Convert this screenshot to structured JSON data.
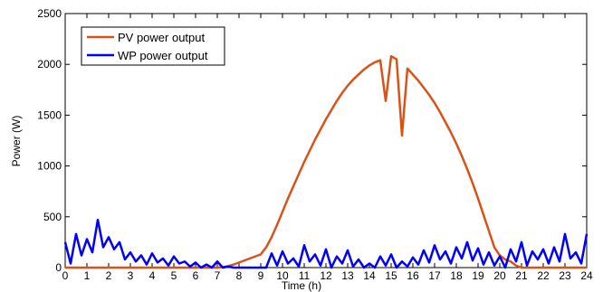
{
  "chart_data": {
    "type": "line",
    "xlabel": "Time (h)",
    "ylabel": "Power (W)",
    "x": [
      0,
      0.25,
      0.5,
      0.75,
      1,
      1.25,
      1.5,
      1.75,
      2,
      2.25,
      2.5,
      2.75,
      3,
      3.25,
      3.5,
      3.75,
      4,
      4.25,
      4.5,
      4.75,
      5,
      5.25,
      5.5,
      5.75,
      6,
      6.25,
      6.5,
      6.75,
      7,
      7.25,
      7.5,
      7.75,
      8,
      8.25,
      8.5,
      8.75,
      9,
      9.25,
      9.5,
      9.75,
      10,
      10.25,
      10.5,
      10.75,
      11,
      11.25,
      11.5,
      11.75,
      12,
      12.25,
      12.5,
      12.75,
      13,
      13.25,
      13.5,
      13.75,
      14,
      14.25,
      14.5,
      14.75,
      15,
      15.25,
      15.5,
      15.75,
      16,
      16.25,
      16.5,
      16.75,
      17,
      17.25,
      17.5,
      17.75,
      18,
      18.25,
      18.5,
      18.75,
      19,
      19.25,
      19.5,
      19.75,
      20,
      20.25,
      20.5,
      20.75,
      21,
      21.25,
      21.5,
      21.75,
      22,
      22.25,
      22.5,
      22.75,
      23,
      23.25,
      23.5,
      23.75,
      24
    ],
    "series": [
      {
        "name": "PV power output",
        "color": "#d95319",
        "values": [
          0,
          0,
          0,
          0,
          0,
          0,
          0,
          0,
          0,
          0,
          0,
          0,
          0,
          0,
          0,
          0,
          0,
          0,
          0,
          0,
          0,
          0,
          0,
          0,
          0,
          0,
          0,
          0,
          0,
          5,
          15,
          30,
          50,
          70,
          90,
          110,
          130,
          200,
          300,
          420,
          550,
          680,
          800,
          920,
          1040,
          1150,
          1260,
          1360,
          1460,
          1550,
          1640,
          1720,
          1790,
          1850,
          1900,
          1950,
          1990,
          2020,
          2040,
          1640,
          2080,
          2050,
          1300,
          1960,
          1900,
          1840,
          1770,
          1700,
          1620,
          1530,
          1430,
          1330,
          1220,
          1100,
          970,
          830,
          680,
          520,
          360,
          200,
          120,
          80,
          60,
          20,
          0,
          0,
          0,
          0,
          0,
          0,
          0,
          0,
          0,
          0,
          0,
          0,
          0
        ]
      },
      {
        "name": "WP power output",
        "color": "#0000ff",
        "values": [
          250,
          40,
          330,
          120,
          280,
          150,
          470,
          200,
          300,
          180,
          250,
          80,
          150,
          60,
          120,
          30,
          140,
          50,
          90,
          20,
          110,
          40,
          60,
          10,
          50,
          0,
          30,
          0,
          60,
          0,
          10,
          0,
          0,
          0,
          0,
          0,
          0,
          0,
          140,
          20,
          160,
          40,
          90,
          10,
          220,
          60,
          130,
          20,
          180,
          0,
          110,
          40,
          170,
          10,
          80,
          0,
          40,
          0,
          110,
          20,
          130,
          0,
          60,
          10,
          100,
          30,
          170,
          50,
          220,
          80,
          160,
          40,
          200,
          90,
          250,
          70,
          190,
          30,
          150,
          20,
          110,
          0,
          180,
          60,
          250,
          20,
          160,
          80,
          180,
          40,
          200,
          60,
          330,
          90,
          150,
          40,
          330
        ]
      }
    ],
    "xlim": [
      0,
      24
    ],
    "xticks": [
      0,
      1,
      2,
      3,
      4,
      5,
      6,
      7,
      8,
      9,
      10,
      11,
      12,
      13,
      14,
      15,
      16,
      17,
      18,
      19,
      20,
      21,
      22,
      23,
      24
    ],
    "ylim": [
      0,
      2500
    ],
    "yticks": [
      0,
      500,
      1000,
      1500,
      2000,
      2500
    ],
    "legend": "upper left"
  }
}
